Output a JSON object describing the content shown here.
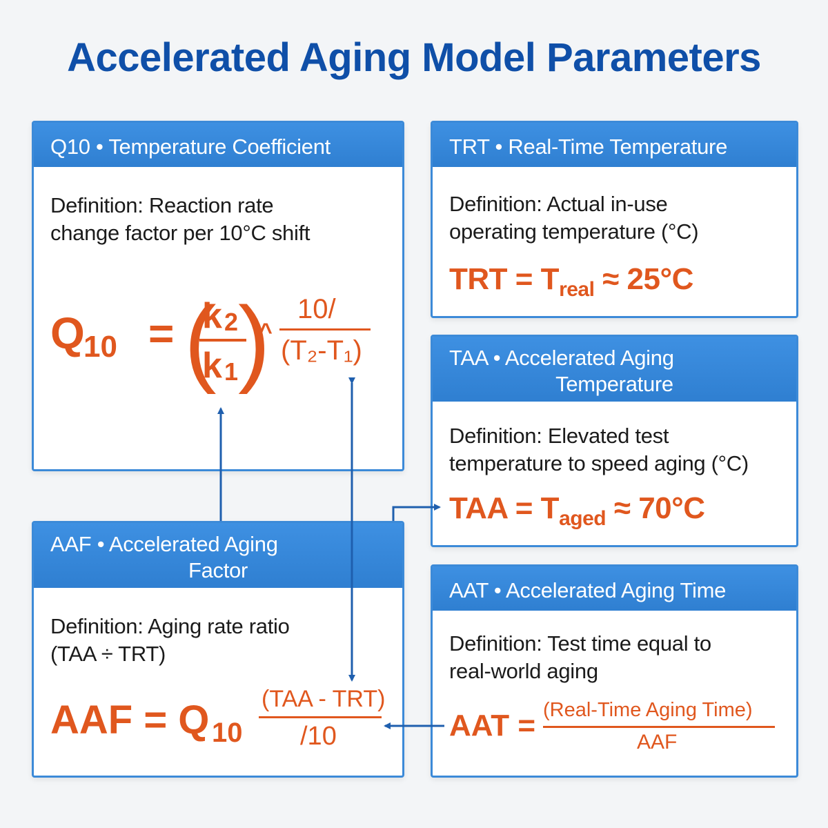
{
  "title": "Accelerated Aging Model Parameters",
  "colors": {
    "title": "#0f4fa8",
    "header": "#3e90e2",
    "border": "#3c8ad8",
    "equation": "#e0571e",
    "arrow": "#1f5fae"
  },
  "cards": {
    "q10": {
      "header": "Q10 • Temperature Coefficient",
      "definition_line1": "Definition: Reaction rate",
      "definition_line2": "change factor per 10°C shift",
      "eq_symbol": "Q",
      "eq_subscript": "10",
      "eq_equals": "=",
      "eq_numerator_k": "k",
      "eq_numerator_sub": "2",
      "eq_denominator_k": "k",
      "eq_denominator_sub": "1",
      "eq_caret": "^",
      "eq_exp_numerator": "10/",
      "eq_exp_denominator": "(T₂-T₁)"
    },
    "trt": {
      "header": "TRT • Real-Time Temperature",
      "definition_line1": "Definition: Actual in-use",
      "definition_line2": "operating temperature (°C)",
      "eq_left": "TRT = T",
      "eq_subscript": "real",
      "eq_right": " ≈ 25°C"
    },
    "taa": {
      "header_line1": "TAA • Accelerated Aging",
      "header_line2": "Temperature",
      "definition_line1": "Definition: Elevated test",
      "definition_line2": "temperature to speed aging (°C)",
      "eq_left": "TAA = T",
      "eq_subscript": "aged",
      "eq_right": " ≈ 70°C"
    },
    "aaf": {
      "header_line1": "AAF • Accelerated Aging",
      "header_line2": "Factor",
      "definition_line1": "Definition: Aging rate ratio",
      "definition_line2": "(TAA ÷ TRT)",
      "eq_left": "AAF = Q",
      "eq_subscript": "10",
      "eq_exp_numerator": "(TAA - TRT)",
      "eq_exp_denominator": "/10"
    },
    "aat": {
      "header": "AAT • Accelerated Aging Time",
      "definition_line1": "Definition: Test time equal to",
      "definition_line2": "real-world aging",
      "eq_left": "AAT =",
      "eq_numerator": "(Real-Time Aging Time)",
      "eq_denominator": "AAF"
    }
  }
}
